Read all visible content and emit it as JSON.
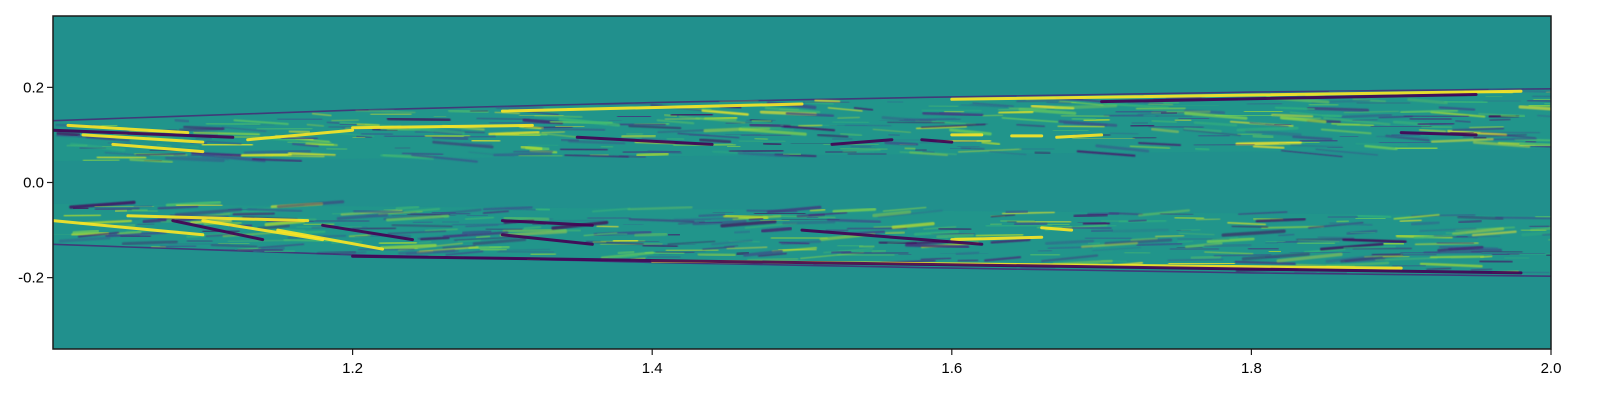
{
  "chart_data": {
    "type": "heatmap",
    "title": "",
    "xlabel": "",
    "ylabel": "",
    "xlim": [
      1.0,
      2.0
    ],
    "ylim": [
      -0.35,
      0.35
    ],
    "xticks": [
      {
        "value": 1.2,
        "label": "1.2"
      },
      {
        "value": 1.4,
        "label": "1.4"
      },
      {
        "value": 1.6,
        "label": "1.6"
      },
      {
        "value": 1.8,
        "label": "1.8"
      },
      {
        "value": 2.0,
        "label": "2.0"
      }
    ],
    "yticks": [
      {
        "value": 0.2,
        "label": "0.2"
      },
      {
        "value": 0.0,
        "label": "0.0"
      },
      {
        "value": -0.2,
        "label": "-0.2"
      }
    ],
    "grid": false,
    "colormap": "viridis",
    "colorscale_range": [
      -1,
      1
    ],
    "background_value": 0,
    "colors": {
      "background": "#21908d",
      "low": "#440154",
      "high": "#fde725"
    },
    "band_envelope": {
      "x": [
        1.0,
        1.2,
        1.4,
        1.6,
        1.8,
        2.0
      ],
      "outer_y": [
        0.13,
        0.152,
        0.168,
        0.18,
        0.19,
        0.197
      ],
      "inner_y": [
        0.045,
        0.05,
        0.055,
        0.06,
        0.065,
        0.07
      ]
    },
    "streaks": [
      {
        "band": "upper",
        "x": [
          1.01,
          1.09
        ],
        "y": [
          0.12,
          0.105
        ],
        "value": 1
      },
      {
        "band": "upper",
        "x": [
          1.02,
          1.1
        ],
        "y": [
          0.1,
          0.085
        ],
        "value": 1
      },
      {
        "band": "upper",
        "x": [
          1.04,
          1.1
        ],
        "y": [
          0.08,
          0.065
        ],
        "value": 1
      },
      {
        "band": "upper",
        "x": [
          1.13,
          1.2
        ],
        "y": [
          0.09,
          0.11
        ],
        "value": 1
      },
      {
        "band": "upper",
        "x": [
          1.2,
          1.32
        ],
        "y": [
          0.115,
          0.12
        ],
        "value": 1
      },
      {
        "band": "upper",
        "x": [
          1.3,
          1.5
        ],
        "y": [
          0.15,
          0.165
        ],
        "value": 1
      },
      {
        "band": "upper",
        "x": [
          1.6,
          1.98
        ],
        "y": [
          0.175,
          0.192
        ],
        "value": 1
      },
      {
        "band": "upper",
        "x": [
          1.6,
          1.62
        ],
        "y": [
          0.1,
          0.1
        ],
        "value": 1
      },
      {
        "band": "upper",
        "x": [
          1.64,
          1.66
        ],
        "y": [
          0.098,
          0.098
        ],
        "value": 1
      },
      {
        "band": "upper",
        "x": [
          1.67,
          1.7
        ],
        "y": [
          0.095,
          0.1
        ],
        "value": 1
      },
      {
        "band": "upper",
        "x": [
          1.0,
          1.12
        ],
        "y": [
          0.11,
          0.095
        ],
        "value": -1
      },
      {
        "band": "upper",
        "x": [
          1.35,
          1.44
        ],
        "y": [
          0.095,
          0.08
        ],
        "value": -1
      },
      {
        "band": "upper",
        "x": [
          1.52,
          1.56
        ],
        "y": [
          0.08,
          0.09
        ],
        "value": -1
      },
      {
        "band": "upper",
        "x": [
          1.58,
          1.6
        ],
        "y": [
          0.09,
          0.085
        ],
        "value": -1
      },
      {
        "band": "upper",
        "x": [
          1.7,
          1.95
        ],
        "y": [
          0.17,
          0.185
        ],
        "value": -1
      },
      {
        "band": "upper",
        "x": [
          1.9,
          1.95
        ],
        "y": [
          0.105,
          0.1
        ],
        "value": -1
      },
      {
        "band": "lower",
        "x": [
          1.0,
          1.1
        ],
        "y": [
          -0.08,
          -0.11
        ],
        "value": 1
      },
      {
        "band": "lower",
        "x": [
          1.05,
          1.17
        ],
        "y": [
          -0.07,
          -0.08
        ],
        "value": 1
      },
      {
        "band": "lower",
        "x": [
          1.1,
          1.18
        ],
        "y": [
          -0.08,
          -0.12
        ],
        "value": 1
      },
      {
        "band": "lower",
        "x": [
          1.15,
          1.22
        ],
        "y": [
          -0.1,
          -0.14
        ],
        "value": 1
      },
      {
        "band": "lower",
        "x": [
          1.66,
          1.68
        ],
        "y": [
          -0.095,
          -0.1
        ],
        "value": 1
      },
      {
        "band": "lower",
        "x": [
          1.6,
          1.66
        ],
        "y": [
          -0.12,
          -0.115
        ],
        "value": 1
      },
      {
        "band": "lower",
        "x": [
          1.4,
          1.9
        ],
        "y": [
          -0.165,
          -0.18
        ],
        "value": 1
      },
      {
        "band": "lower",
        "x": [
          1.08,
          1.14
        ],
        "y": [
          -0.08,
          -0.12
        ],
        "value": -1
      },
      {
        "band": "lower",
        "x": [
          1.18,
          1.24
        ],
        "y": [
          -0.09,
          -0.12
        ],
        "value": -1
      },
      {
        "band": "lower",
        "x": [
          1.3,
          1.36
        ],
        "y": [
          -0.08,
          -0.09
        ],
        "value": -1
      },
      {
        "band": "lower",
        "x": [
          1.3,
          1.36
        ],
        "y": [
          -0.11,
          -0.13
        ],
        "value": -1
      },
      {
        "band": "lower",
        "x": [
          1.5,
          1.62
        ],
        "y": [
          -0.1,
          -0.13
        ],
        "value": -1
      },
      {
        "band": "lower",
        "x": [
          1.2,
          1.98
        ],
        "y": [
          -0.155,
          -0.19
        ],
        "value": -1
      }
    ]
  }
}
